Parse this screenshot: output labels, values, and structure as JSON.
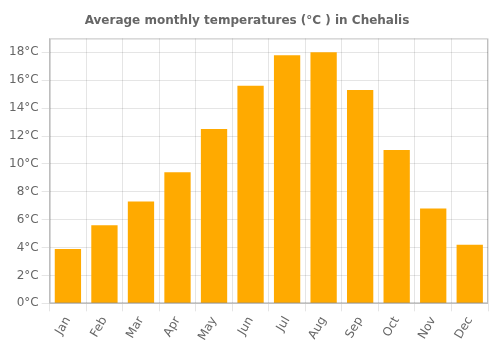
{
  "chart_data": {
    "type": "bar",
    "title": "Average monthly temperatures (°C ) in Chehalis",
    "categories": [
      "Jan",
      "Feb",
      "Mar",
      "Apr",
      "May",
      "Jun",
      "Jul",
      "Aug",
      "Sep",
      "Oct",
      "Nov",
      "Dec"
    ],
    "values": [
      3.9,
      5.6,
      7.3,
      9.4,
      12.5,
      15.6,
      17.8,
      18.0,
      15.3,
      11.0,
      6.8,
      4.2
    ],
    "color": "#FFAA00",
    "ylim": [
      0,
      19
    ],
    "yticks": [
      {
        "value": 0,
        "label": "0°C"
      },
      {
        "value": 2,
        "label": "2°C"
      },
      {
        "value": 4,
        "label": "4°C"
      },
      {
        "value": 6,
        "label": "6°C"
      },
      {
        "value": 8,
        "label": "8°C"
      },
      {
        "value": 10,
        "label": "10°C"
      },
      {
        "value": 12,
        "label": "12°C"
      },
      {
        "value": 14,
        "label": "14°C"
      },
      {
        "value": 16,
        "label": "16°C"
      },
      {
        "value": 18,
        "label": "18°C"
      }
    ],
    "grid": true
  }
}
